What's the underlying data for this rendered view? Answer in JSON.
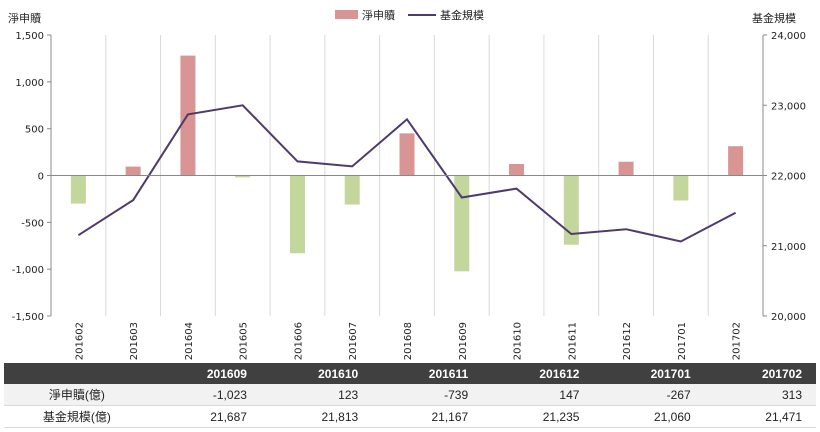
{
  "chart_data": {
    "type": "bar+line",
    "legend": [
      "淨申贖",
      "基金規模"
    ],
    "legend_position": "top-center",
    "left_axis_title": "淨申贖",
    "right_axis_title": "基金規模",
    "categories": [
      "201602",
      "201603",
      "201604",
      "201605",
      "201606",
      "201607",
      "201608",
      "201609",
      "201610",
      "201611",
      "201612",
      "201701",
      "201702"
    ],
    "bar_values": [
      -300,
      95,
      1280,
      -20,
      -830,
      -310,
      450,
      -1023,
      123,
      -739,
      147,
      -267,
      313
    ],
    "line_values": [
      21150,
      21650,
      22870,
      23000,
      22200,
      22130,
      22800,
      21687,
      21813,
      21167,
      21235,
      21060,
      21471
    ],
    "left_ylim": [
      -1500,
      1500
    ],
    "right_ylim": [
      20000,
      24000
    ],
    "left_ticks": [
      "1,500",
      "1,000",
      "500",
      "0",
      "-500",
      "-1,000",
      "-1,500"
    ],
    "right_ticks": [
      "24,000",
      "23,000",
      "22,000",
      "21,000",
      "20,000"
    ],
    "colors": {
      "positive_bar": "#d99594",
      "negative_bar": "#c3d69b",
      "line": "#4f3a6e"
    },
    "grid": "vertical"
  },
  "table": {
    "headers": [
      "201609",
      "201610",
      "201611",
      "201612",
      "201701",
      "201702"
    ],
    "rows": [
      {
        "label": "淨申贖(億)",
        "values": [
          "-1,023",
          "123",
          "-739",
          "147",
          "-267",
          "313"
        ]
      },
      {
        "label": "基金規模(億)",
        "values": [
          "21,687",
          "21,813",
          "21,167",
          "21,235",
          "21,060",
          "21,471"
        ]
      }
    ]
  }
}
